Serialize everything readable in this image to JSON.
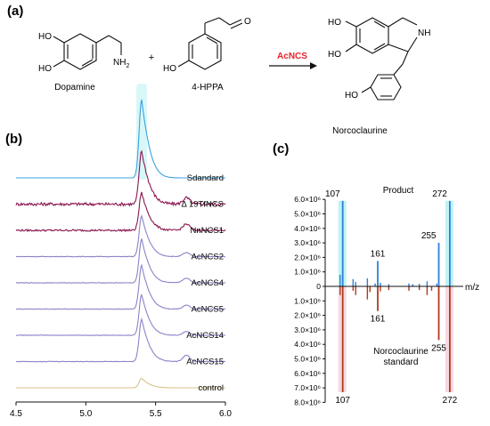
{
  "panel_labels": {
    "a": "(a)",
    "b": "(b)",
    "c": "(c)"
  },
  "reaction": {
    "substrate1": "Dopamine",
    "substrate2": "4-HPPA",
    "product": "Norcoclaurine",
    "enzyme": "AcNCS",
    "plus": "+",
    "atom_labels": {
      "ho": "HO",
      "nh2": "NH",
      "nh2_sub": "2",
      "nh": "NH",
      "o": "O"
    }
  },
  "chart_data": [
    {
      "type": "line",
      "panel": "(b)",
      "xlim": [
        4.5,
        6.0
      ],
      "xticks": [
        "4.5",
        "5.0",
        "5.5",
        "6.0"
      ],
      "x_tick_values": [
        4.5,
        5.0,
        5.5,
        6.0
      ],
      "xlabel": "",
      "ylabel": "",
      "y_axis_shown": false,
      "peak_retention_time": 5.4,
      "secondary_peak_time": 5.72,
      "colors": {
        "standard": "#3aa0e0",
        "ntfncs": "#8b1650",
        "nnncs": "#8b1650",
        "acncs": "#8a84c8",
        "control": "#d9c28a",
        "standard_glow": "#b8f0f2"
      },
      "series": [
        {
          "name": "Sdandard",
          "color_key": "standard",
          "peak": 1.0,
          "secondary": 0.0,
          "noise": 0.0
        },
        {
          "name": "Δ 19TfNCS",
          "color_key": "ntfncs",
          "peak": 0.68,
          "secondary": 0.08,
          "noise": 0.02
        },
        {
          "name": "NnNCS1",
          "color_key": "nnncs",
          "peak": 0.48,
          "secondary": 0.08,
          "noise": 0.012
        },
        {
          "name": "AcNCS2",
          "color_key": "acncs",
          "peak": 0.52,
          "secondary": 0.05,
          "noise": 0.004
        },
        {
          "name": "AcNCS4",
          "color_key": "acncs",
          "peak": 0.56,
          "secondary": 0.06,
          "noise": 0.004
        },
        {
          "name": "AcNCS5",
          "color_key": "acncs",
          "peak": 0.56,
          "secondary": 0.05,
          "noise": 0.004
        },
        {
          "name": "AcNCS14",
          "color_key": "acncs",
          "peak": 0.52,
          "secondary": 0.05,
          "noise": 0.004
        },
        {
          "name": "AcNCS15",
          "color_key": "acncs",
          "peak": 0.54,
          "secondary": 0.08,
          "noise": 0.004
        },
        {
          "name": "control",
          "color_key": "control",
          "peak": 0.12,
          "secondary": 0.0,
          "noise": 0.0
        }
      ]
    },
    {
      "type": "bar",
      "panel": "(c)",
      "xlabel": "m/z",
      "ylabel": "",
      "ylim": [
        -8000000,
        6000000
      ],
      "yticks": [
        "6.0×10⁶",
        "5.0×10⁶",
        "4.0×10⁶",
        "3.0×10⁶",
        "2.0×10⁶",
        "1.0×10⁶",
        "0",
        "1.0×10⁶",
        "2.0×10⁶",
        "3.0×10⁶",
        "4.0×10⁶",
        "5.0×10⁶",
        "6.0×10⁶",
        "7.0×10⁶",
        "8.0×10⁶"
      ],
      "ytick_values": [
        6000000,
        5000000,
        4000000,
        3000000,
        2000000,
        1000000,
        0,
        -1000000,
        -2000000,
        -3000000,
        -4000000,
        -5000000,
        -6000000,
        -7000000,
        -8000000
      ],
      "x_range_mz": [
        80,
        290
      ],
      "colors": {
        "product": "#2e7fd9",
        "standard": "#b03a1c",
        "product_glow": "#bff3f5",
        "standard_glow": "#f4c8d6"
      },
      "series": [
        {
          "name": "Product",
          "values": [
            {
              "mz": 107,
              "intensity": 5900000,
              "label": "107"
            },
            {
              "mz": 161,
              "intensity": 1750000,
              "label": "161"
            },
            {
              "mz": 255,
              "intensity": 3000000,
              "label": "255"
            },
            {
              "mz": 272,
              "intensity": 5900000,
              "label": "272"
            },
            {
              "mz": 103,
              "intensity": 800000,
              "label": ""
            },
            {
              "mz": 123,
              "intensity": 500000,
              "label": ""
            },
            {
              "mz": 127,
              "intensity": 300000,
              "label": ""
            },
            {
              "mz": 145,
              "intensity": 550000,
              "label": ""
            },
            {
              "mz": 157,
              "intensity": 200000,
              "label": ""
            },
            {
              "mz": 165,
              "intensity": 250000,
              "label": ""
            },
            {
              "mz": 178,
              "intensity": 150000,
              "label": ""
            },
            {
              "mz": 209,
              "intensity": 200000,
              "label": ""
            },
            {
              "mz": 215,
              "intensity": 150000,
              "label": ""
            },
            {
              "mz": 225,
              "intensity": 180000,
              "label": ""
            },
            {
              "mz": 237,
              "intensity": 350000,
              "label": ""
            },
            {
              "mz": 252,
              "intensity": 200000,
              "label": ""
            }
          ]
        },
        {
          "name": "Norcoclaurine standard",
          "values": [
            {
              "mz": 107,
              "intensity": -7300000,
              "label": "107"
            },
            {
              "mz": 161,
              "intensity": -1700000,
              "label": "161"
            },
            {
              "mz": 255,
              "intensity": -3700000,
              "label": "255"
            },
            {
              "mz": 272,
              "intensity": -7300000,
              "label": "272"
            },
            {
              "mz": 103,
              "intensity": -600000,
              "label": ""
            },
            {
              "mz": 123,
              "intensity": -300000,
              "label": ""
            },
            {
              "mz": 127,
              "intensity": -600000,
              "label": ""
            },
            {
              "mz": 145,
              "intensity": -900000,
              "label": ""
            },
            {
              "mz": 149,
              "intensity": -400000,
              "label": ""
            },
            {
              "mz": 165,
              "intensity": -350000,
              "label": ""
            },
            {
              "mz": 178,
              "intensity": -250000,
              "label": ""
            },
            {
              "mz": 209,
              "intensity": -300000,
              "label": ""
            },
            {
              "mz": 225,
              "intensity": -250000,
              "label": ""
            },
            {
              "mz": 237,
              "intensity": -600000,
              "label": ""
            },
            {
              "mz": 244,
              "intensity": -300000,
              "label": ""
            }
          ]
        }
      ],
      "legend_text": {
        "product": "Product",
        "standard_line1": "Norcoclaurine",
        "standard_line2": "standard"
      }
    }
  ]
}
